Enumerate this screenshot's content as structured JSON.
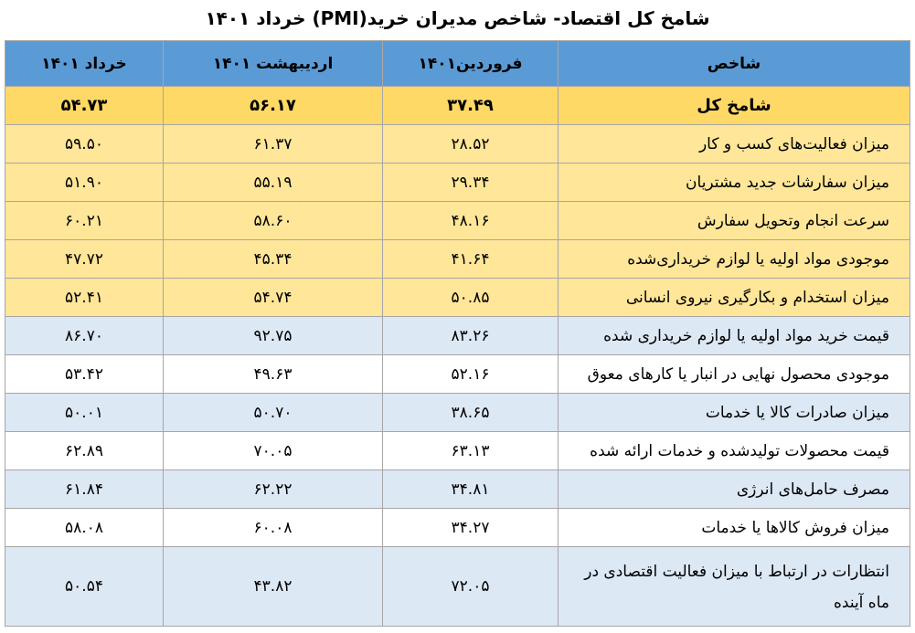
{
  "title": "شامخ کل اقتصاد- شاخص مدیران خرید(PMI) خرداد ۱۴۰۱",
  "headers": {
    "indicator": "شاخص",
    "farvardin": "فروردین۱۴۰۱",
    "ordibehesht": "اردیبهشت ۱۴۰۱",
    "khordad": "خرداد ۱۴۰۱"
  },
  "rows": [
    {
      "label": "شامخ  کل",
      "farvardin": "۳۷.۴۹",
      "ordibehesht": "۵۶.۱۷",
      "khordad": "۵۴.۷۳"
    },
    {
      "label": "میزان فعالیت‌های کسب و کار",
      "farvardin": "۲۸.۵۲",
      "ordibehesht": "۶۱.۳۷",
      "khordad": "۵۹.۵۰"
    },
    {
      "label": "میزان سفارشات جدید مشتریان",
      "farvardin": "۲۹.۳۴",
      "ordibehesht": "۵۵.۱۹",
      "khordad": "۵۱.۹۰"
    },
    {
      "label": "سرعت انجام وتحویل سفارش",
      "farvardin": "۴۸.۱۶",
      "ordibehesht": "۵۸.۶۰",
      "khordad": "۶۰.۲۱"
    },
    {
      "label": "موجودی مواد اولیه یا لوازم خریداری‌شده",
      "farvardin": "۴۱.۶۴",
      "ordibehesht": "۴۵.۳۴",
      "khordad": "۴۷.۷۲"
    },
    {
      "label": "میزان استخدام و بکارگیری نیروی انسانی",
      "farvardin": "۵۰.۸۵",
      "ordibehesht": "۵۴.۷۴",
      "khordad": "۵۲.۴۱"
    },
    {
      "label": "قیمت خرید مواد اولیه یا لوازم خریداری شده",
      "farvardin": "۸۳.۲۶",
      "ordibehesht": "۹۲.۷۵",
      "khordad": "۸۶.۷۰"
    },
    {
      "label": "موجودی محصول نهایی در انبار یا کارهای معوق",
      "farvardin": "۵۲.۱۶",
      "ordibehesht": "۴۹.۶۳",
      "khordad": "۵۳.۴۲"
    },
    {
      "label": "میزان صادرات کالا یا خدمات",
      "farvardin": "۳۸.۶۵",
      "ordibehesht": "۵۰.۷۰",
      "khordad": "۵۰.۰۱"
    },
    {
      "label": "قیمت محصولات تولیدشده و خدمات ارائه شده",
      "farvardin": "۶۳.۱۳",
      "ordibehesht": "۷۰.۰۵",
      "khordad": "۶۲.۸۹"
    },
    {
      "label": "مصرف حامل‌های انرژی",
      "farvardin": "۳۴.۸۱",
      "ordibehesht": "۶۲.۲۲",
      "khordad": "۶۱.۸۴"
    },
    {
      "label": "میزان فروش کالاها یا خدمات",
      "farvardin": "۳۴.۲۷",
      "ordibehesht": "۶۰.۰۸",
      "khordad": "۵۸.۰۸"
    },
    {
      "label": "انتظارات در ارتباط با میزان فعالیت اقتصادی در ماه آینده",
      "farvardin": "۷۲.۰۵",
      "ordibehesht": "۴۳.۸۲",
      "khordad": "۵۰.۵۴"
    }
  ],
  "colors": {
    "header": "#5b9bd5",
    "total": "#ffd966",
    "yellow_rows": "#ffe699",
    "blue_rows": "#dde8f5",
    "white_rows": "#ffffff"
  }
}
